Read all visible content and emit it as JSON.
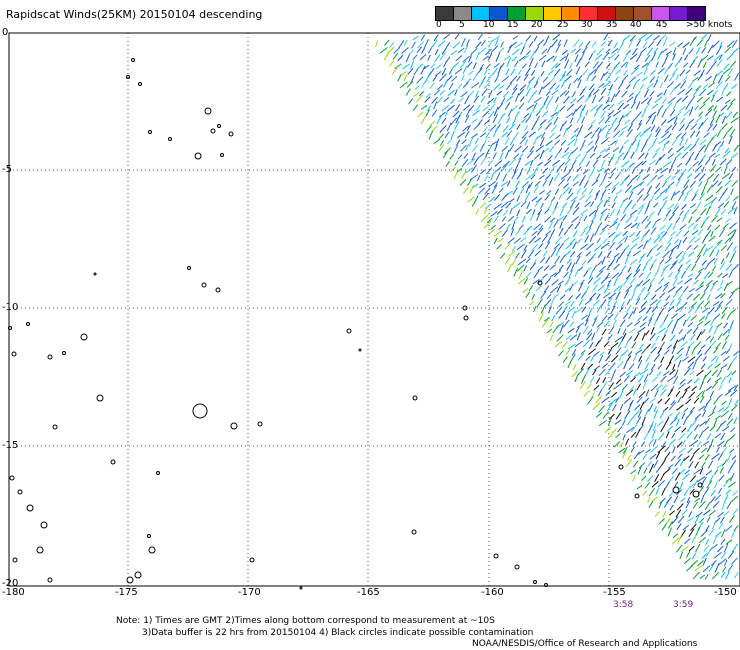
{
  "title": "Rapidscat Winds(25KM) 20150104 descending",
  "colorbar": {
    "colors": [
      "#3b3b3b",
      "#8a8a8a",
      "#00bfff",
      "#0a57cf",
      "#00a030",
      "#9ad80a",
      "#ffc800",
      "#ff8c00",
      "#ff3030",
      "#d01010",
      "#8b4513",
      "#a0522d",
      "#cc55ee",
      "#7a1ad0",
      "#40007a"
    ],
    "labels": [
      "0",
      "5",
      "10",
      "15",
      "20",
      "25",
      "30",
      "35",
      "40",
      "45",
      ">50 knots"
    ]
  },
  "y_axis_labels": [
    "0",
    "-5",
    "-10",
    "-15",
    "-20"
  ],
  "x_axis_labels": [
    "-180",
    "-175",
    "-170",
    "-165",
    "-160",
    "-155",
    "-150"
  ],
  "times": [
    "3:58",
    "3:59"
  ],
  "notes": [
    "Note: 1) Times are GMT 2)Times along bottom correspond to measurement at ~10S",
    "3)Data buffer is 22 hrs from 20150104 4) Black circles indicate possible contamination",
    "NOAA/NESDIS/Office of Research and Applications"
  ]
}
